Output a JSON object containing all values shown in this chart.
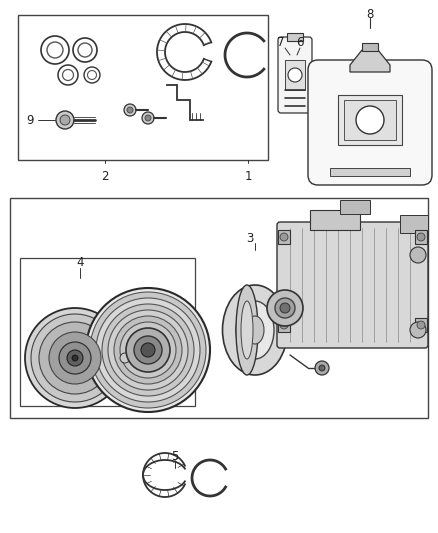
{
  "bg_color": "#ffffff",
  "line_color": "#333333",
  "text_color": "#222222",
  "fig_width": 4.38,
  "fig_height": 5.33,
  "dpi": 100,
  "font_size_label": 8.5
}
